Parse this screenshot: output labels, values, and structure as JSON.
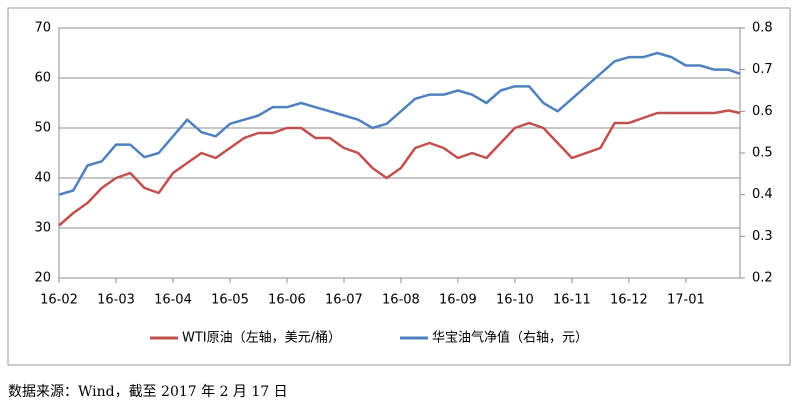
{
  "chart_data": {
    "type": "line",
    "x": [
      0,
      0.25,
      0.5,
      0.75,
      1,
      1.25,
      1.5,
      1.75,
      2,
      2.25,
      2.5,
      2.75,
      3,
      3.25,
      3.5,
      3.75,
      4,
      4.25,
      4.5,
      4.75,
      5,
      5.25,
      5.5,
      5.75,
      6,
      6.25,
      6.5,
      6.75,
      7,
      7.25,
      7.5,
      7.75,
      8,
      8.25,
      8.5,
      8.75,
      9,
      9.25,
      9.5,
      9.75,
      10,
      10.25,
      10.5,
      10.75,
      11,
      11.25,
      11.5,
      11.75,
      11.95
    ],
    "xlim": [
      0,
      11.95
    ],
    "xticks": [
      {
        "value": 0,
        "label": "16-02"
      },
      {
        "value": 1,
        "label": "16-03"
      },
      {
        "value": 2,
        "label": "16-04"
      },
      {
        "value": 3,
        "label": "16-05"
      },
      {
        "value": 4,
        "label": "16-06"
      },
      {
        "value": 5,
        "label": "16-07"
      },
      {
        "value": 6,
        "label": "16-08"
      },
      {
        "value": 7,
        "label": "16-09"
      },
      {
        "value": 8,
        "label": "16-10"
      },
      {
        "value": 9,
        "label": "16-11"
      },
      {
        "value": 10,
        "label": "16-12"
      },
      {
        "value": 11,
        "label": "17-01"
      }
    ],
    "ylim": [
      20,
      70
    ],
    "yticks": [
      20,
      30,
      40,
      50,
      60,
      70
    ],
    "y2lim": [
      0.2,
      0.8
    ],
    "y2ticks": [
      0.2,
      0.3,
      0.4,
      0.5,
      0.6,
      0.7,
      0.8
    ],
    "grid": true,
    "series": [
      {
        "name": "WTI原油（左轴，美元/桶）",
        "color": "#c0504d",
        "values": [
          30.5,
          33,
          35,
          38,
          40,
          41,
          38,
          37,
          41,
          43,
          45,
          44,
          46,
          48,
          49,
          49,
          50,
          50,
          48,
          48,
          46,
          45,
          42,
          40,
          42,
          46,
          47,
          46,
          44,
          45,
          44,
          47,
          50,
          51,
          50,
          47,
          44,
          45,
          46,
          51,
          51,
          52,
          53,
          53,
          53,
          53,
          53,
          53.5,
          53
        ]
      },
      {
        "name": "华宝油气净值（右轴，元）",
        "color": "#4f81bd",
        "axis": "y2",
        "values": [
          0.4,
          0.41,
          0.47,
          0.48,
          0.52,
          0.52,
          0.49,
          0.5,
          0.54,
          0.58,
          0.55,
          0.54,
          0.57,
          0.58,
          0.59,
          0.61,
          0.61,
          0.62,
          0.61,
          0.6,
          0.59,
          0.58,
          0.56,
          0.57,
          0.6,
          0.63,
          0.64,
          0.64,
          0.65,
          0.64,
          0.62,
          0.65,
          0.66,
          0.66,
          0.62,
          0.6,
          0.63,
          0.66,
          0.69,
          0.72,
          0.73,
          0.73,
          0.74,
          0.73,
          0.71,
          0.71,
          0.7,
          0.7,
          0.69
        ]
      }
    ],
    "source": "数据来源：Wind，截至 2017 年 2 月 17 日"
  }
}
